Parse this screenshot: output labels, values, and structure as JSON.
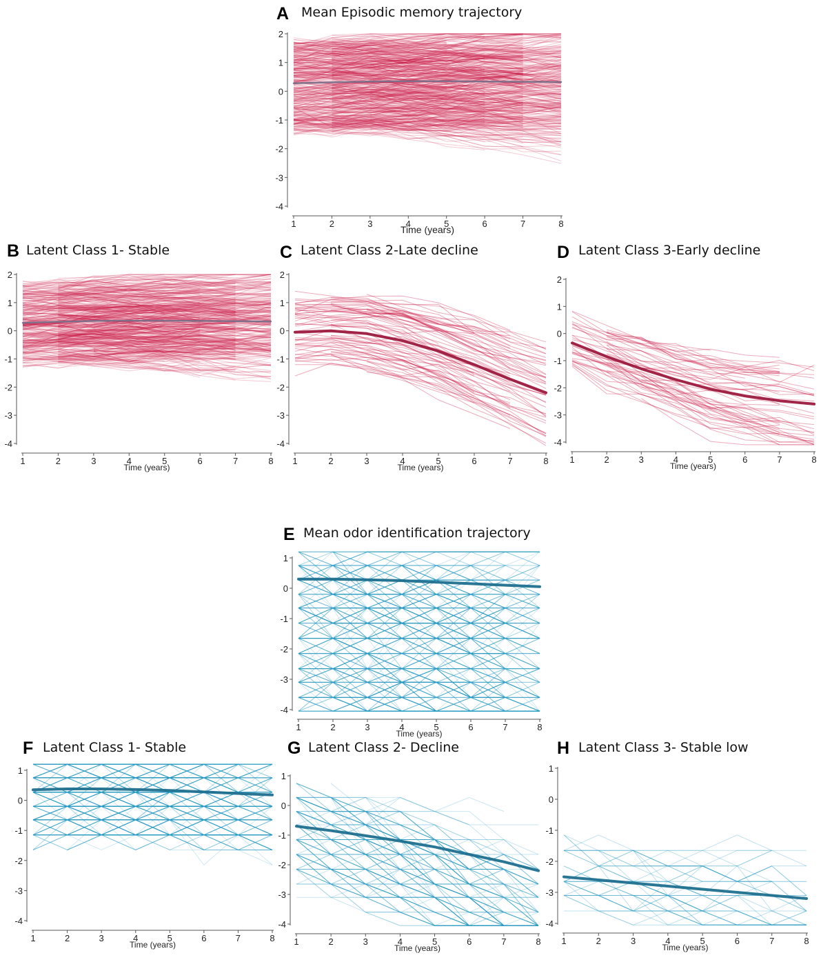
{
  "colors": {
    "memory": "#c8103e",
    "memory_mean": "#9c1a3e",
    "odor": "#2a9bc4",
    "odor_mean": "#1f6f8f",
    "memory_stable_mean": "#7a6e88"
  },
  "chart_data": [
    {
      "id": "A",
      "letter": "A",
      "title": "Mean Episodic memory trajectory",
      "type": "line",
      "xlabel": "Time (years)",
      "ylabel": "",
      "xlim": [
        1,
        8
      ],
      "ylim": [
        -4,
        2
      ],
      "xticks": [
        1,
        2,
        3,
        4,
        5,
        6,
        7,
        8
      ],
      "yticks": [
        2,
        1,
        0,
        -1,
        -2,
        -3,
        -4
      ],
      "series": [
        {
          "values": [
            0.28,
            0.31,
            0.34,
            0.35,
            0.35,
            0.34,
            0.33,
            0.32
          ]
        }
      ],
      "individuals": {
        "count": 480,
        "start_range": [
          -1.4,
          1.7
        ],
        "drift_mean": 0.0,
        "drift_sd": 0.09,
        "noise": 0.25,
        "alpha": 0.22,
        "color_key": "memory"
      },
      "mean_color_key": "memory_stable_mean"
    },
    {
      "id": "B",
      "letter": "B",
      "title": "Latent Class 1- Stable",
      "type": "line",
      "xlabel": "Time (years)",
      "ylabel": "",
      "xlim": [
        1,
        8
      ],
      "ylim": [
        -4,
        2
      ],
      "xticks": [
        1,
        2,
        3,
        4,
        5,
        6,
        7,
        8
      ],
      "yticks": [
        2,
        1,
        0,
        -1,
        -2,
        -3,
        -4
      ],
      "series": [
        {
          "values": [
            0.28,
            0.32,
            0.35,
            0.36,
            0.36,
            0.35,
            0.34,
            0.33
          ]
        }
      ],
      "individuals": {
        "count": 420,
        "start_range": [
          -1.2,
          1.7
        ],
        "drift_mean": 0.0,
        "drift_sd": 0.06,
        "noise": 0.22,
        "alpha": 0.22,
        "color_key": "memory"
      },
      "mean_color_key": "memory_stable_mean"
    },
    {
      "id": "C",
      "letter": "C",
      "title": "Latent Class 2-Late decline",
      "type": "line",
      "xlabel": "Time (years)",
      "ylabel": "",
      "xlim": [
        1,
        8
      ],
      "ylim": [
        -4,
        2
      ],
      "xticks": [
        1,
        2,
        3,
        4,
        5,
        6,
        7,
        8
      ],
      "yticks": [
        2,
        1,
        0,
        -1,
        -2,
        -3,
        -4
      ],
      "series": [
        {
          "values": [
            -0.05,
            0.0,
            -0.1,
            -0.35,
            -0.72,
            -1.2,
            -1.72,
            -2.2
          ]
        }
      ],
      "individuals": {
        "count": 75,
        "start_range": [
          -1.3,
          1.2
        ],
        "drift_mean": 0.0,
        "drift_sd": 0.1,
        "noise": 0.25,
        "alpha": 0.35,
        "color_key": "memory"
      },
      "mean_color_key": "memory_mean"
    },
    {
      "id": "D",
      "letter": "D",
      "title": "Latent Class 3-Early decline",
      "type": "line",
      "xlabel": "Time (years)",
      "ylabel": "",
      "xlim": [
        1,
        8
      ],
      "ylim": [
        -4,
        2
      ],
      "xticks": [
        1,
        2,
        3,
        4,
        5,
        6,
        7,
        8
      ],
      "yticks": [
        2,
        1,
        0,
        -1,
        -2,
        -3,
        -4
      ],
      "series": [
        {
          "values": [
            -0.35,
            -0.85,
            -1.3,
            -1.7,
            -2.05,
            -2.3,
            -2.48,
            -2.6
          ]
        }
      ],
      "individuals": {
        "count": 55,
        "start_range": [
          -1.4,
          0.8
        ],
        "drift_mean": 0.0,
        "drift_sd": 0.12,
        "noise": 0.3,
        "alpha": 0.35,
        "color_key": "memory"
      },
      "mean_color_key": "memory_mean"
    },
    {
      "id": "E",
      "letter": "E",
      "title": "Mean odor identification trajectory",
      "type": "line",
      "xlabel": "Time (years)",
      "ylabel": "",
      "xlim": [
        1,
        8
      ],
      "ylim": [
        -4.2,
        1.4
      ],
      "xticks": [
        1,
        2,
        3,
        4,
        5,
        6,
        7,
        8
      ],
      "yticks": [
        1,
        0,
        -1,
        -2,
        -3,
        -4
      ],
      "series": [
        {
          "values": [
            0.3,
            0.3,
            0.28,
            0.25,
            0.2,
            0.15,
            0.1,
            0.05
          ]
        }
      ],
      "individuals": {
        "count": 420,
        "start_range": [
          -4.0,
          1.2
        ],
        "drift_mean": -0.05,
        "drift_sd": 0.15,
        "noise": 0.6,
        "alpha": 0.22,
        "color_key": "odor",
        "quantize": [
          1.2,
          0.75,
          0.27,
          -0.2,
          -0.65,
          -1.15,
          -1.65,
          -2.15,
          -2.65,
          -3.1,
          -3.6,
          -4.05
        ]
      },
      "mean_color_key": "odor_mean"
    },
    {
      "id": "F",
      "letter": "F",
      "title": "Latent Class 1- Stable",
      "type": "line",
      "xlabel": "Time (years)",
      "ylabel": "",
      "xlim": [
        1,
        8
      ],
      "ylim": [
        -4.2,
        1.4
      ],
      "xticks": [
        1,
        2,
        3,
        4,
        5,
        6,
        7,
        8
      ],
      "yticks": [
        1,
        0,
        -1,
        -2,
        -3,
        -4
      ],
      "series": [
        {
          "values": [
            0.35,
            0.38,
            0.38,
            0.36,
            0.33,
            0.28,
            0.23,
            0.18
          ]
        }
      ],
      "individuals": {
        "count": 320,
        "start_range": [
          -1.2,
          1.2
        ],
        "drift_mean": 0.0,
        "drift_sd": 0.05,
        "noise": 0.45,
        "alpha": 0.22,
        "color_key": "odor",
        "quantize": [
          1.2,
          0.75,
          0.27,
          -0.2,
          -0.65,
          -1.15,
          -1.65,
          -2.15
        ]
      },
      "mean_color_key": "odor_mean"
    },
    {
      "id": "G",
      "letter": "G",
      "title": "Latent Class 2- Decline",
      "type": "line",
      "xlabel": "Time (years)",
      "ylabel": "",
      "xlim": [
        1,
        8
      ],
      "ylim": [
        -4.2,
        1.4
      ],
      "xticks": [
        1,
        2,
        3,
        4,
        5,
        6,
        7,
        8
      ],
      "yticks": [
        1,
        0,
        -1,
        -2,
        -3,
        -4
      ],
      "series": [
        {
          "values": [
            -0.7,
            -0.85,
            -1.02,
            -1.2,
            -1.4,
            -1.65,
            -1.9,
            -2.2
          ]
        }
      ],
      "individuals": {
        "count": 160,
        "start_range": [
          -2.6,
          0.8
        ],
        "drift_mean": -0.22,
        "drift_sd": 0.12,
        "noise": 0.55,
        "alpha": 0.25,
        "color_key": "odor",
        "quantize": [
          0.75,
          0.27,
          -0.2,
          -0.65,
          -1.15,
          -1.65,
          -2.15,
          -2.65,
          -3.1,
          -3.6,
          -4.05
        ]
      },
      "mean_color_key": "odor_mean"
    },
    {
      "id": "H",
      "letter": "H",
      "title": "Latent Class 3- Stable low",
      "type": "line",
      "xlabel": "Time (years)",
      "ylabel": "",
      "xlim": [
        1,
        8
      ],
      "ylim": [
        -4.2,
        1.4
      ],
      "xticks": [
        1,
        2,
        3,
        4,
        5,
        6,
        7,
        8
      ],
      "yticks": [
        1,
        0,
        -1,
        -2,
        -3,
        -4
      ],
      "series": [
        {
          "values": [
            -2.5,
            -2.6,
            -2.7,
            -2.8,
            -2.9,
            -3.0,
            -3.1,
            -3.2
          ]
        }
      ],
      "individuals": {
        "count": 45,
        "start_range": [
          -3.6,
          -1.2
        ],
        "drift_mean": -0.05,
        "drift_sd": 0.08,
        "noise": 0.5,
        "alpha": 0.3,
        "color_key": "odor",
        "quantize": [
          -1.15,
          -1.65,
          -2.15,
          -2.65,
          -3.1,
          -3.6,
          -4.05
        ]
      },
      "mean_color_key": "odor_mean"
    }
  ]
}
